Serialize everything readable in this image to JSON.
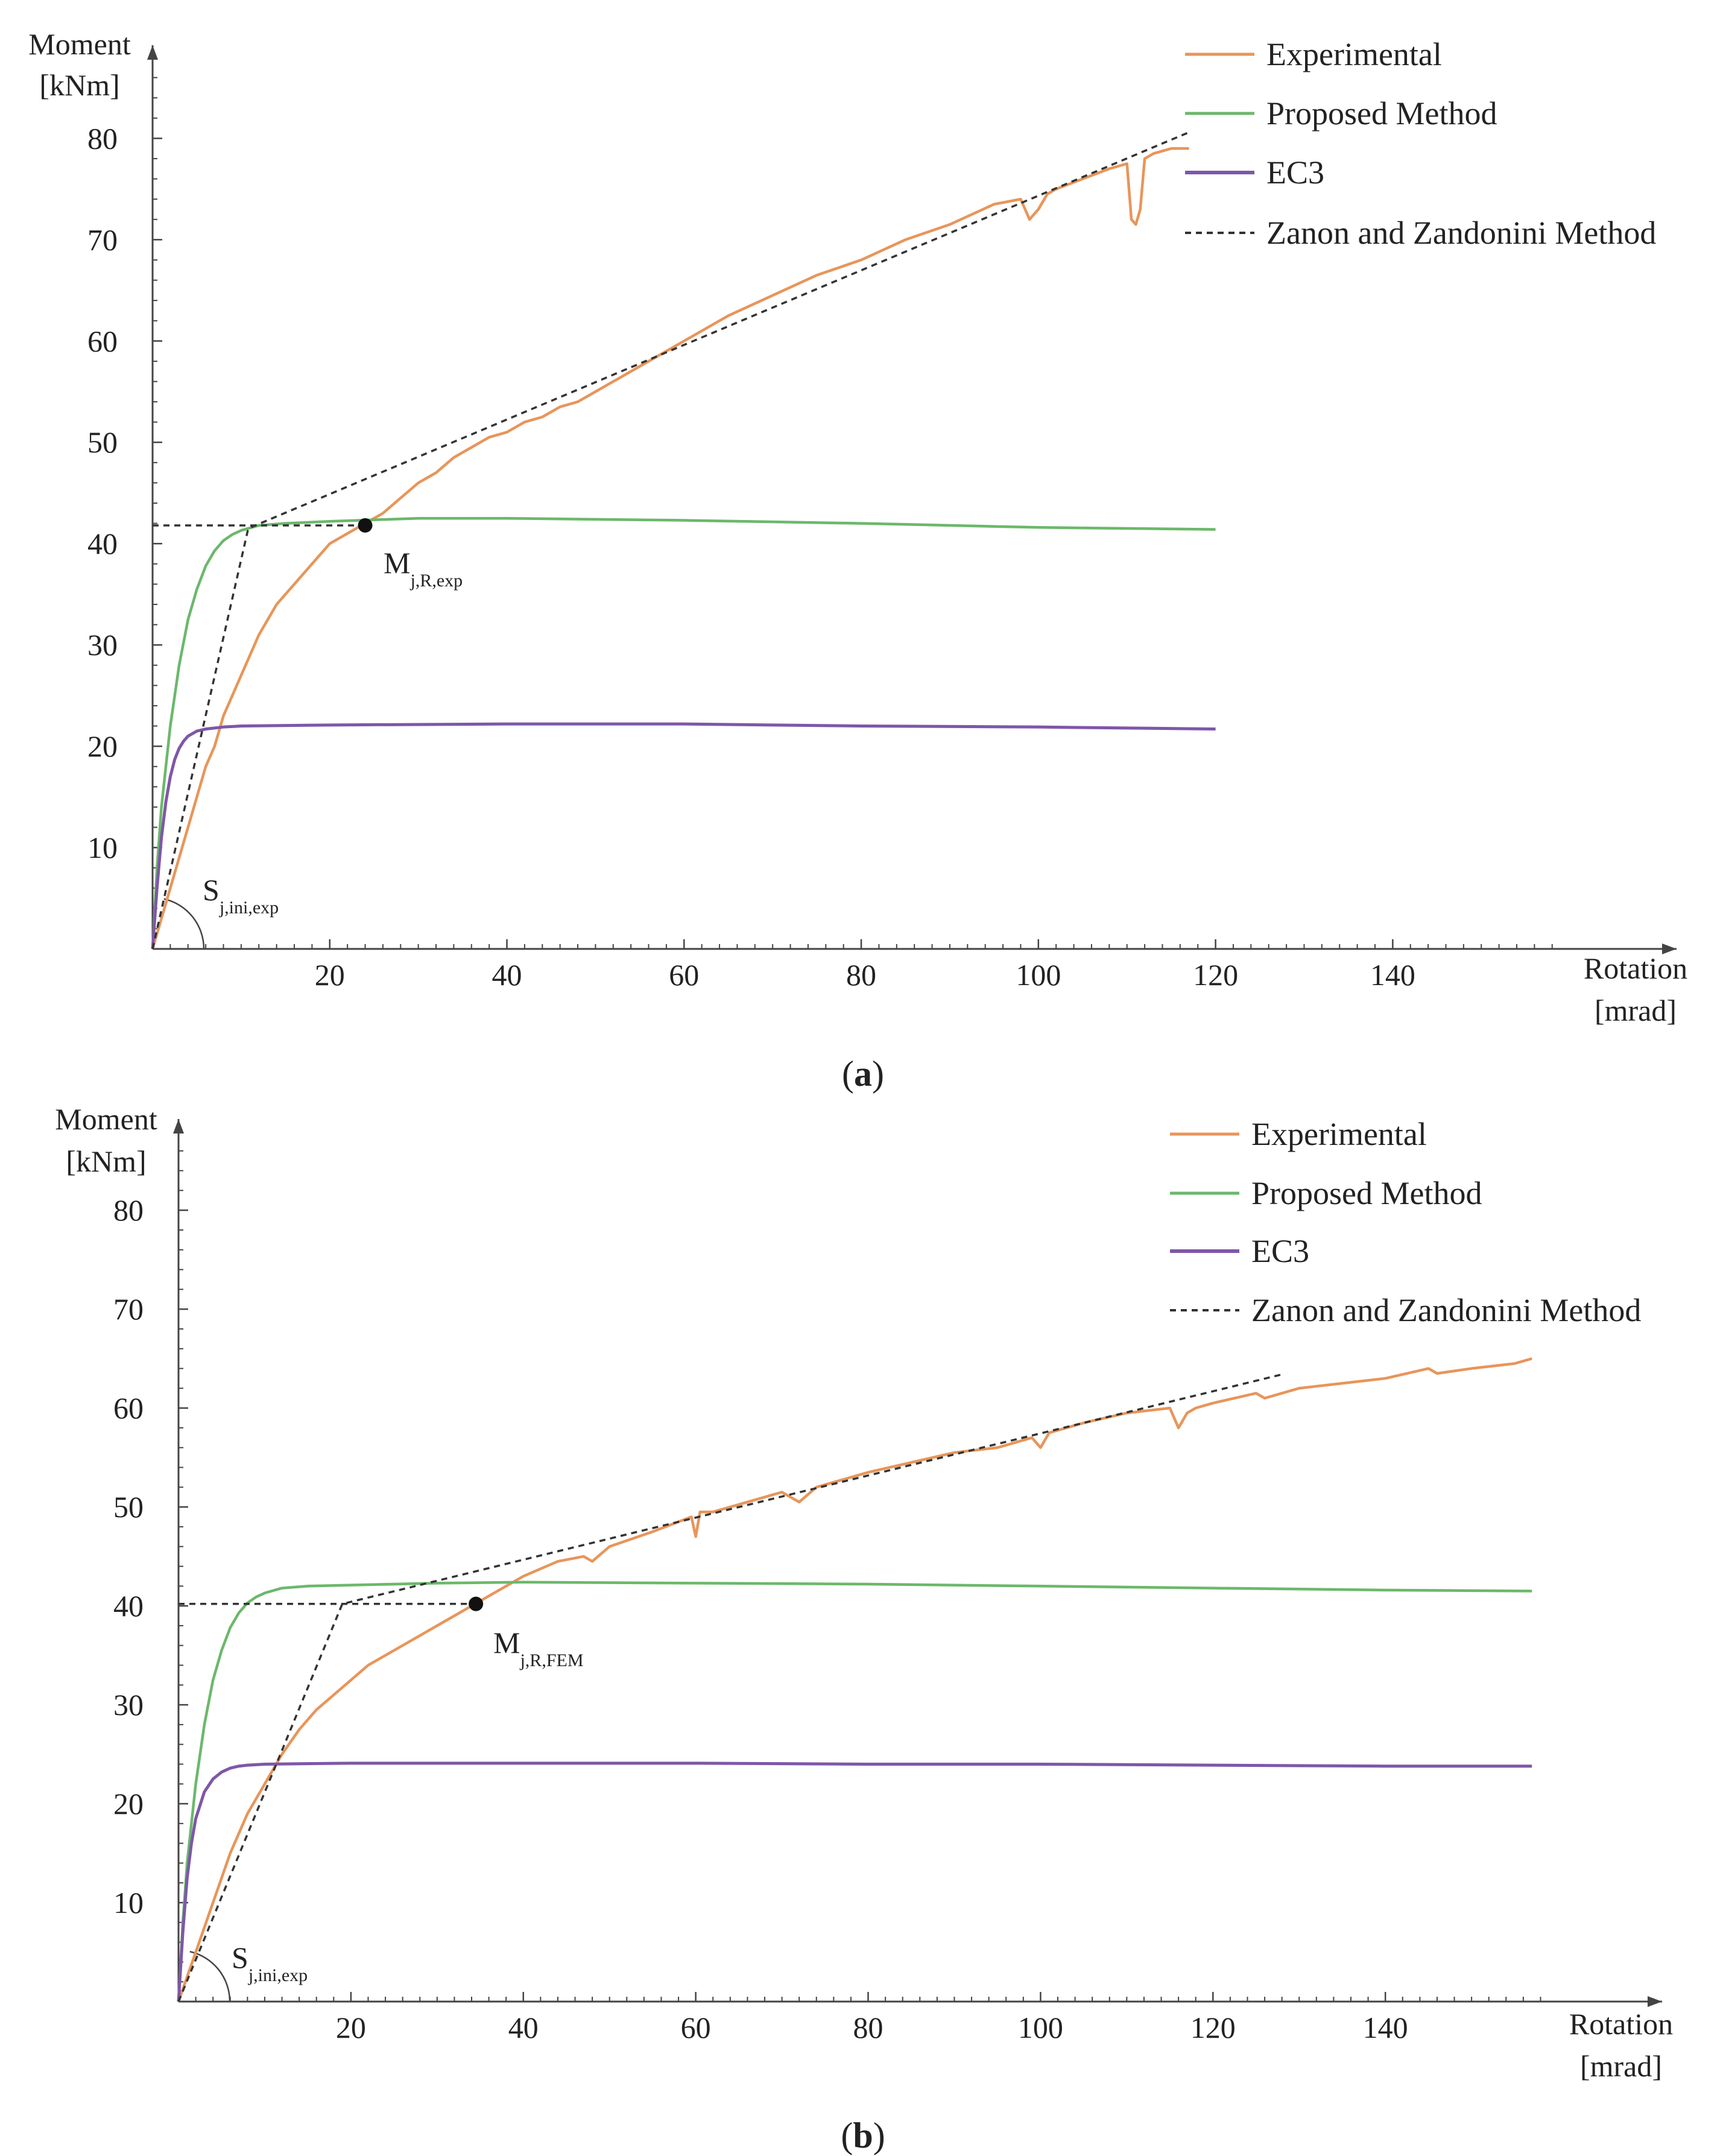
{
  "legend": {
    "experimental": "Experimental",
    "proposed": "Proposed Method",
    "ec3": "EC3",
    "zanon": "Zanon and Zandonini Method"
  },
  "colors": {
    "experimental": "#E8955A",
    "proposed": "#6BB86B",
    "ec3": "#7E57A8",
    "zanon": "#333333",
    "axis": "#444444"
  },
  "chart_data": [
    {
      "type": "line",
      "panel": "a",
      "caption_letter": "a",
      "ylabel_line1": "Moment",
      "ylabel_line2": "[kNm]",
      "xlabel_line1": "Rotation",
      "xlabel_line2": "[mrad]",
      "xlim": [
        0,
        170
      ],
      "ylim": [
        0,
        88
      ],
      "xticks": [
        20,
        40,
        60,
        80,
        100,
        120,
        140
      ],
      "yticks": [
        10,
        20,
        30,
        40,
        50,
        60,
        70,
        80
      ],
      "series": [
        {
          "name": "Experimental",
          "key": "experimental",
          "x": [
            0,
            1,
            2,
            3,
            4,
            5,
            6,
            7,
            8,
            10,
            12,
            14,
            16,
            18,
            20,
            22,
            24,
            26,
            28,
            30,
            32,
            34,
            36,
            38,
            40,
            42,
            44,
            46,
            48,
            50,
            55,
            60,
            65,
            70,
            75,
            80,
            85,
            90,
            95,
            98,
            99,
            100,
            101,
            102,
            105,
            108,
            110,
            110.5,
            111,
            111.5,
            112,
            113,
            115,
            117
          ],
          "y": [
            0,
            3,
            6,
            9,
            12,
            15,
            18,
            20,
            23,
            27,
            31,
            34,
            36,
            38,
            40,
            41,
            42,
            43,
            44.5,
            46,
            47,
            48.5,
            49.5,
            50.5,
            51,
            52,
            52.5,
            53.5,
            54,
            55,
            57.5,
            60,
            62.5,
            64.5,
            66.5,
            68,
            70,
            71.5,
            73.5,
            74,
            72,
            73,
            74.5,
            75,
            76,
            77,
            77.5,
            72,
            71.5,
            73,
            78,
            78.5,
            79,
            79
          ]
        },
        {
          "name": "Proposed Method",
          "key": "proposed",
          "x": [
            0,
            0.5,
            1,
            2,
            3,
            4,
            5,
            6,
            7,
            8,
            9,
            10,
            12,
            15,
            20,
            30,
            40,
            60,
            80,
            100,
            120
          ],
          "y": [
            0,
            8,
            14,
            22,
            28,
            32.5,
            35.5,
            37.8,
            39.3,
            40.3,
            40.9,
            41.3,
            41.8,
            42.0,
            42.2,
            42.5,
            42.5,
            42.3,
            42.0,
            41.6,
            41.4
          ]
        },
        {
          "name": "EC3",
          "key": "ec3",
          "x": [
            0,
            0.5,
            1,
            1.5,
            2,
            2.5,
            3,
            3.5,
            4,
            5,
            6,
            8,
            10,
            20,
            40,
            60,
            80,
            100,
            120
          ],
          "y": [
            0,
            6,
            11,
            14.5,
            17,
            18.7,
            19.8,
            20.5,
            21.0,
            21.5,
            21.7,
            21.9,
            22.0,
            22.1,
            22.2,
            22.2,
            22.0,
            21.9,
            21.7
          ]
        },
        {
          "name": "Zanon and Zandonini Method",
          "key": "zanon",
          "segments": [
            {
              "x": [
                0,
                10.8,
                117
              ],
              "y": [
                0,
                41.5,
                80.6
              ]
            },
            {
              "x": [
                0,
                24
              ],
              "y": [
                41.8,
                41.8
              ]
            }
          ]
        }
      ],
      "annotations": {
        "point": {
          "x": 24,
          "y": 41.8
        },
        "m_main": "M",
        "m_sub": "j,R,exp",
        "s_main": "S",
        "s_sub": "j,ini,exp"
      }
    },
    {
      "type": "line",
      "panel": "b",
      "caption_letter": "b",
      "ylabel_line1": "Moment",
      "ylabel_line2": "[kNm]",
      "xlabel_line1": "Rotation",
      "xlabel_line2": "[mrad]",
      "xlim": [
        0,
        170
      ],
      "ylim": [
        0,
        88
      ],
      "xticks": [
        20,
        40,
        60,
        80,
        100,
        120,
        140
      ],
      "yticks": [
        10,
        20,
        30,
        40,
        50,
        60,
        70,
        80
      ],
      "series": [
        {
          "name": "Experimental",
          "key": "experimental",
          "x": [
            0,
            2,
            4,
            6,
            8,
            10,
            12,
            14,
            16,
            18,
            20,
            22,
            24,
            26,
            28,
            30,
            32,
            34,
            36,
            38,
            40,
            44,
            47,
            48,
            50,
            55,
            59.5,
            60,
            60.5,
            62,
            66,
            70,
            72,
            74,
            80,
            85,
            90,
            95,
            99,
            100,
            101,
            105,
            110,
            115,
            116,
            117,
            118,
            120,
            125,
            126,
            130,
            135,
            140,
            145,
            146,
            150,
            155,
            157
          ],
          "y": [
            0,
            5,
            10,
            15,
            19,
            22,
            25,
            27.5,
            29.5,
            31,
            32.5,
            34,
            35,
            36,
            37,
            38,
            39,
            40,
            41,
            42,
            43,
            44.5,
            45,
            44.5,
            46,
            47.5,
            49,
            47,
            49.5,
            49.5,
            50.5,
            51.5,
            50.5,
            52,
            53.5,
            54.5,
            55.5,
            56,
            57,
            56,
            57.5,
            58.5,
            59.5,
            60,
            58,
            59.5,
            60,
            60.5,
            61.5,
            61,
            62,
            62.5,
            63,
            64,
            63.5,
            64,
            64.5,
            65
          ]
        },
        {
          "name": "Proposed Method",
          "key": "proposed",
          "x": [
            0,
            0.5,
            1,
            2,
            3,
            4,
            5,
            6,
            7,
            8,
            9,
            10,
            12,
            15,
            20,
            30,
            40,
            60,
            80,
            100,
            120,
            140,
            157
          ],
          "y": [
            0,
            8,
            14,
            22,
            28,
            32.5,
            35.5,
            37.8,
            39.3,
            40.3,
            40.9,
            41.3,
            41.8,
            42.0,
            42.1,
            42.3,
            42.4,
            42.3,
            42.2,
            42.0,
            41.8,
            41.6,
            41.5
          ]
        },
        {
          "name": "EC3",
          "key": "ec3",
          "x": [
            0,
            0.5,
            1,
            1.5,
            2,
            3,
            4,
            5,
            6,
            7,
            8,
            10,
            20,
            40,
            60,
            80,
            100,
            120,
            140,
            157
          ],
          "y": [
            0,
            7,
            12.5,
            16,
            18.5,
            21.2,
            22.5,
            23.2,
            23.6,
            23.8,
            23.9,
            24.0,
            24.1,
            24.1,
            24.1,
            24.0,
            24.0,
            23.9,
            23.8,
            23.8
          ]
        },
        {
          "name": "Zanon and Zandonini Method",
          "key": "zanon",
          "segments": [
            {
              "x": [
                0,
                19,
                128
              ],
              "y": [
                0,
                40.2,
                63.4
              ]
            },
            {
              "x": [
                0,
                34.5
              ],
              "y": [
                40.2,
                40.2
              ]
            }
          ]
        }
      ],
      "annotations": {
        "point": {
          "x": 34.5,
          "y": 40.2
        },
        "m_main": "M",
        "m_sub": "j,R,FEM",
        "s_main": "S",
        "s_sub": "j,ini,exp"
      }
    }
  ]
}
